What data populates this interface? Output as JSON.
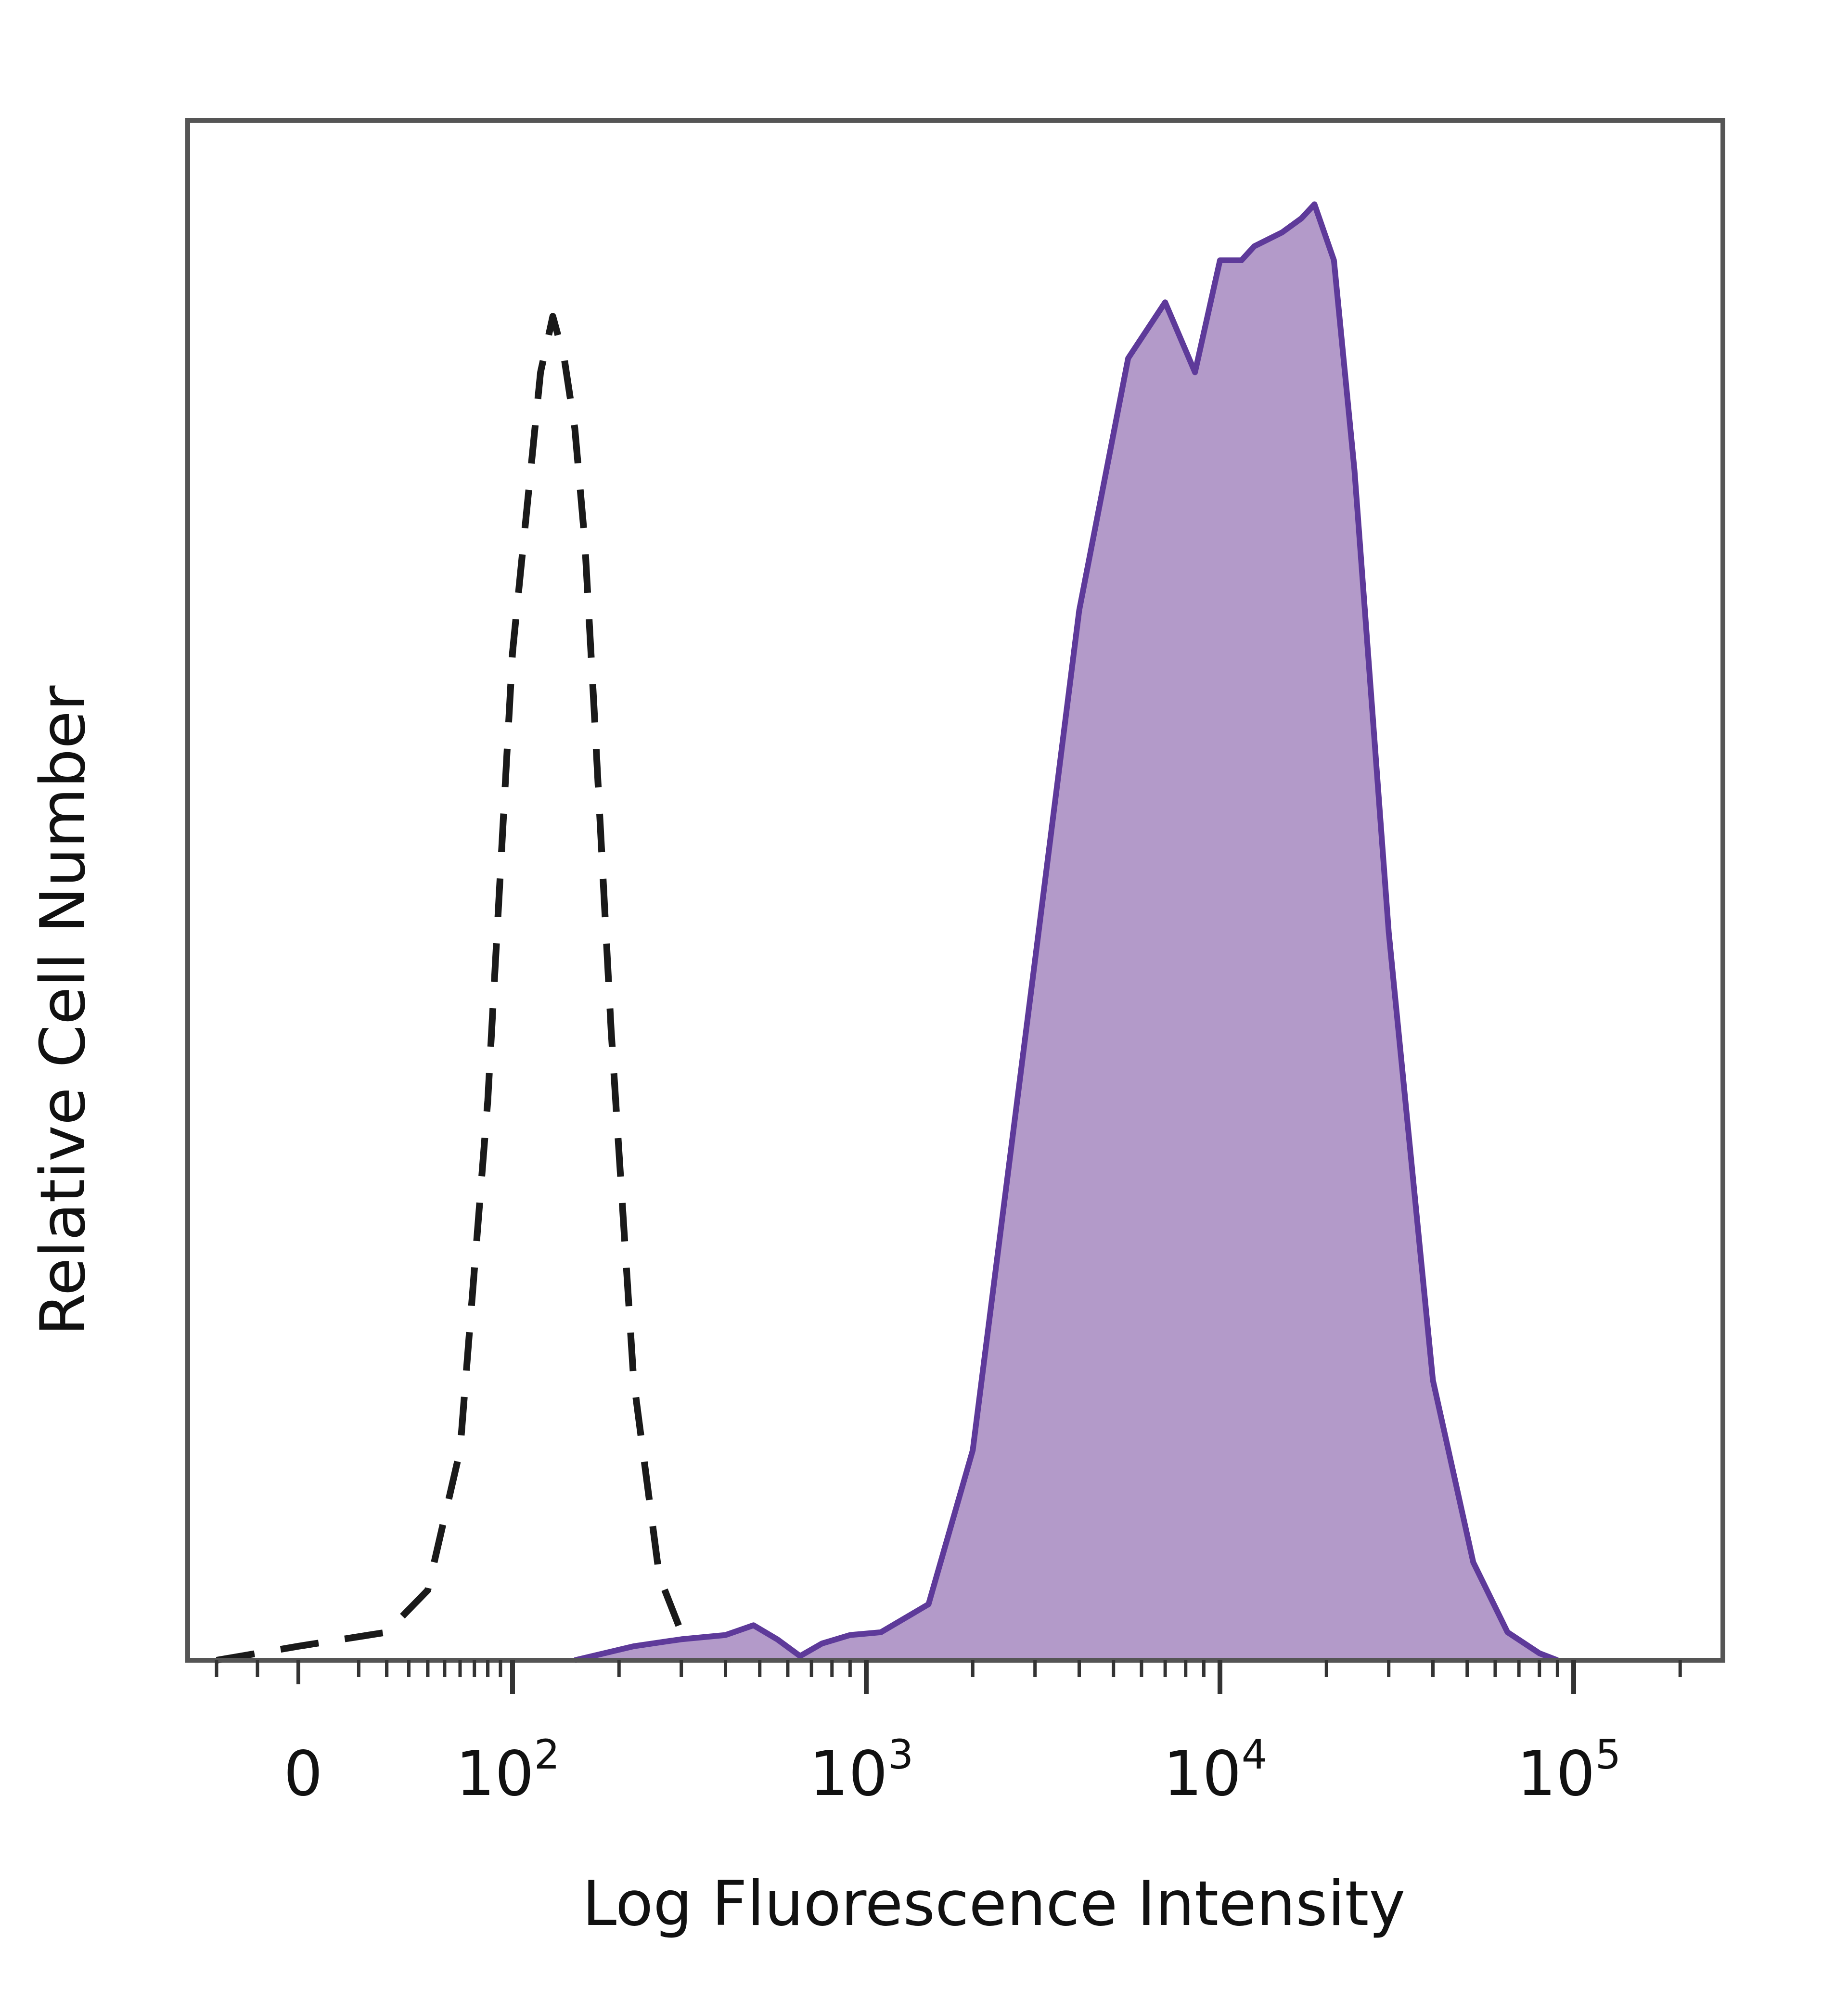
{
  "chart_data": {
    "type": "area",
    "xlabel": "Log Fluorescence Intensity",
    "ylabel": "Relative Cell Number",
    "x_scale": "biexponential",
    "xlim": [
      -60,
      300000
    ],
    "ylim": [
      0,
      1.1
    ],
    "grid": false,
    "legend": "none",
    "x_ticks": [
      {
        "value": 0,
        "base": "0",
        "exp": ""
      },
      {
        "value": 100,
        "base": "10",
        "exp": "2"
      },
      {
        "value": 1000,
        "base": "10",
        "exp": "3"
      },
      {
        "value": 10000,
        "base": "10",
        "exp": "4"
      },
      {
        "value": 100000,
        "base": "10",
        "exp": "5"
      }
    ],
    "series": [
      {
        "style": "dashed",
        "color": "#1a1a1a",
        "fill": "none",
        "x": [
          -40,
          -20,
          0,
          20,
          40,
          60,
          80,
          100,
          120,
          130,
          140,
          150,
          160,
          170,
          190,
          220,
          260,
          300,
          350,
          420
        ],
        "y": [
          0,
          0.005,
          0.01,
          0.02,
          0.05,
          0.15,
          0.4,
          0.72,
          0.92,
          0.96,
          0.93,
          0.88,
          0.8,
          0.68,
          0.45,
          0.2,
          0.06,
          0.02,
          0.008,
          0
        ]
      },
      {
        "style": "solid",
        "color": "#5e3a9a",
        "fill": "#b39ac9",
        "x": [
          150,
          220,
          300,
          400,
          480,
          560,
          650,
          750,
          900,
          1100,
          1500,
          2000,
          3000,
          4000,
          5500,
          7000,
          8500,
          10000,
          11500,
          12500,
          15000,
          17000,
          18500,
          21000,
          24000,
          30000,
          40000,
          52000,
          65000,
          80000,
          90000
        ],
        "y": [
          0,
          0.01,
          0.015,
          0.018,
          0.025,
          0.015,
          0.003,
          0.012,
          0.018,
          0.02,
          0.04,
          0.15,
          0.5,
          0.75,
          0.93,
          0.97,
          0.92,
          1.0,
          1.0,
          1.01,
          1.02,
          1.03,
          1.04,
          1.0,
          0.85,
          0.52,
          0.2,
          0.07,
          0.02,
          0.005,
          0
        ]
      }
    ]
  }
}
